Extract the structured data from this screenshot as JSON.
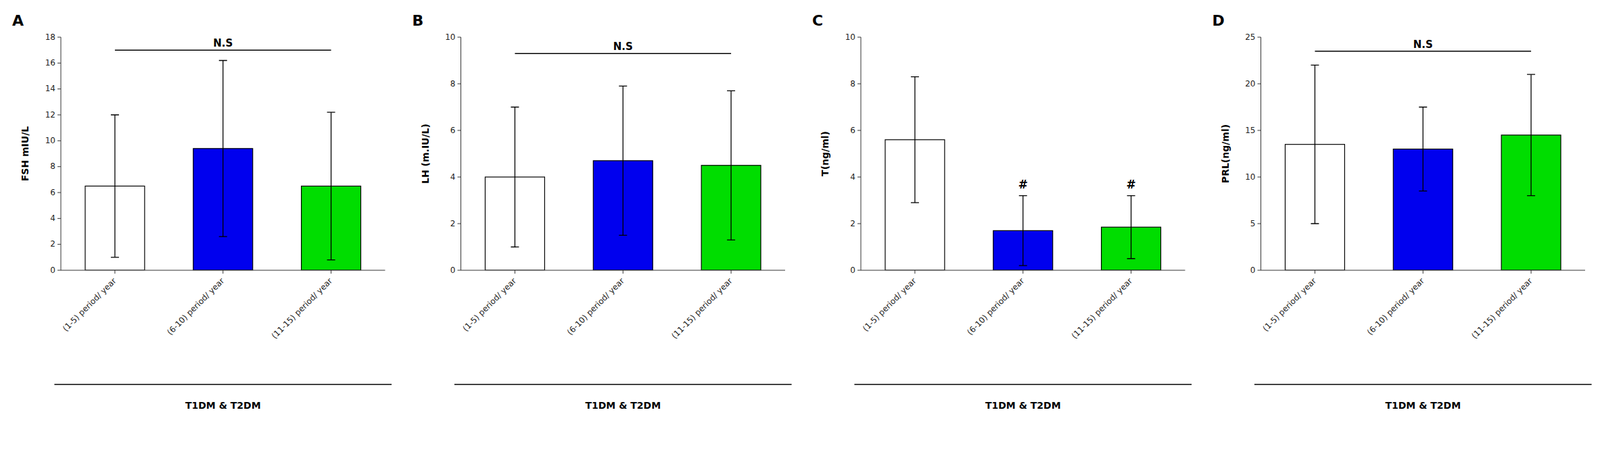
{
  "chart_data": [
    {
      "type": "bar",
      "title": "A",
      "ylabel": "FSH mIU/L",
      "xlabel": "T1DM & T2DM",
      "categories": [
        "(1-5) period/ year",
        "(6-10) period/ year",
        "(11-15) period/ year"
      ],
      "values": [
        6.5,
        9.4,
        6.5
      ],
      "errors": [
        5.5,
        6.8,
        5.7
      ],
      "colors": [
        "white",
        "#0000ee",
        "#00dd00"
      ],
      "ylim": [
        0,
        18
      ],
      "yticks": [
        0,
        2,
        4,
        6,
        8,
        10,
        12,
        14,
        16,
        18
      ],
      "grid": false,
      "annotations": [
        {
          "text": "N.S",
          "y": 17.0,
          "from": "(1-5) period/ year",
          "to": "(11-15) period/ year"
        }
      ]
    },
    {
      "type": "bar",
      "title": "B",
      "ylabel": "LH (m.IU/L)",
      "xlabel": "T1DM & T2DM",
      "categories": [
        "(1-5) period/ year",
        "(6-10) period/ year",
        "(11-15) period/ year"
      ],
      "values": [
        4.0,
        4.7,
        4.5
      ],
      "errors": [
        3.0,
        3.2,
        3.2
      ],
      "colors": [
        "white",
        "#0000ee",
        "#00dd00"
      ],
      "ylim": [
        0,
        10
      ],
      "yticks": [
        0,
        2,
        4,
        6,
        8,
        10
      ],
      "grid": false,
      "annotations": [
        {
          "text": "N.S",
          "y": 9.3,
          "from": "(1-5) period/ year",
          "to": "(11-15) period/ year"
        }
      ]
    },
    {
      "type": "bar",
      "title": "C",
      "ylabel": "T(ng/ml)",
      "xlabel": "T1DM & T2DM",
      "categories": [
        "(1-5) period/ year",
        "(6-10) period/ year",
        "(11-15) period/ year"
      ],
      "values": [
        5.6,
        1.7,
        1.85
      ],
      "errors": [
        2.7,
        1.5,
        1.35
      ],
      "colors": [
        "white",
        "#0000ee",
        "#00dd00"
      ],
      "ylim": [
        0,
        10
      ],
      "yticks": [
        0,
        2,
        4,
        6,
        8,
        10
      ],
      "grid": false,
      "annotations": [
        {
          "text": "#",
          "x": "(6-10) period/ year"
        },
        {
          "text": "#",
          "x": "(11-15) period/ year"
        }
      ]
    },
    {
      "type": "bar",
      "title": "D",
      "ylabel": "PRL(ng/ml)",
      "xlabel": "T1DM & T2DM",
      "categories": [
        "(1-5) period/ year",
        "(6-10) period/ year",
        "(11-15) period/ year"
      ],
      "values": [
        13.5,
        13.0,
        14.5
      ],
      "errors": [
        8.5,
        4.5,
        6.5
      ],
      "colors": [
        "white",
        "#0000ee",
        "#00dd00"
      ],
      "ylim": [
        0,
        25
      ],
      "yticks": [
        0,
        5,
        10,
        15,
        20,
        25
      ],
      "grid": false,
      "annotations": [
        {
          "text": "N.S",
          "y": 23.5,
          "from": "(1-5) period/ year",
          "to": "(11-15) period/ year"
        }
      ]
    }
  ]
}
